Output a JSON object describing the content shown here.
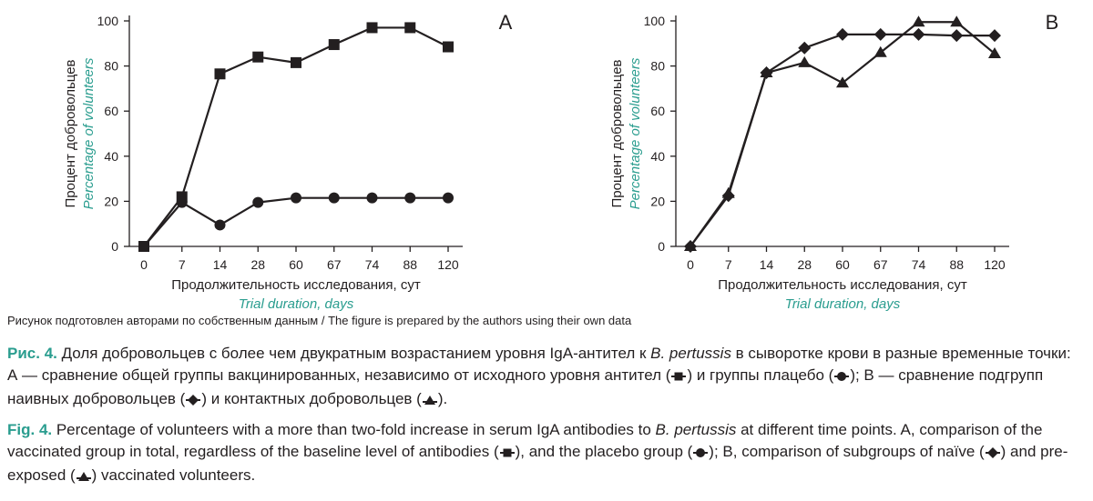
{
  "chart_data": [
    {
      "type": "line",
      "panel_label": "A",
      "categories": [
        "0",
        "7",
        "14",
        "28",
        "60",
        "67",
        "74",
        "88",
        "120"
      ],
      "ylabel": "Процент добровольцев",
      "ylabel_en": "Percentage of volunteers",
      "xlabel": "Продолжительность исследования, сут",
      "xlabel_en": "Trial duration, days",
      "yticks": [
        "0",
        "20",
        "40",
        "60",
        "80",
        "100"
      ],
      "ylim": [
        0,
        100
      ],
      "grid": false,
      "series": [
        {
          "marker": "square",
          "values": [
            0,
            22,
            76.5,
            84,
            81.5,
            89.5,
            97,
            97,
            88.5
          ]
        },
        {
          "marker": "circle",
          "values": [
            0,
            19.5,
            9.5,
            19.5,
            21.5,
            21.5,
            21.5,
            21.5,
            21.5
          ]
        }
      ]
    },
    {
      "type": "line",
      "panel_label": "B",
      "categories": [
        "0",
        "7",
        "14",
        "28",
        "60",
        "67",
        "74",
        "88",
        "120"
      ],
      "ylabel": "Процент добровольцев",
      "ylabel_en": "Percentage of volunteers",
      "xlabel": "Продолжительность исследования, сут",
      "xlabel_en": "Trial duration, days",
      "yticks": [
        "0",
        "20",
        "40",
        "60",
        "80",
        "100"
      ],
      "ylim": [
        0,
        100
      ],
      "grid": false,
      "series": [
        {
          "marker": "diamond",
          "values": [
            0,
            22.5,
            77,
            88,
            94,
            94,
            94,
            93.5,
            93.5
          ]
        },
        {
          "marker": "triangle",
          "values": [
            0,
            23.5,
            77,
            81.5,
            72.5,
            86,
            99.5,
            99.5,
            85.5
          ]
        }
      ]
    }
  ],
  "source_note": "Рисунок подготовлен авторами по собственным данным / The figure is prepared by the authors using their own data",
  "caption_ru": {
    "label": "Рис. 4.",
    "t1": " Доля добровольцев с более чем двукратным возрастанием уровня IgA-антител к ",
    "italic": "B. pertussis",
    "t2": " в сыворотке крови в разные временные точки: А — сравнение общей группы вакцинированных, независимо от исходного уровня антител (",
    "t3": ") и группы плацебо (",
    "t4": "); В — сравнение подгрупп наивных добровольцев (",
    "t5": ") и контактных добровольцев (",
    "t6": ")."
  },
  "caption_en": {
    "label": "Fig. 4.",
    "t1": " Percentage of volunteers with a more than two-fold increase in serum IgA antibodies to ",
    "italic": "B. pertussis",
    "t2": " at different time points. A, comparison of the vaccinated group in total, regardless of the baseline level of antibodies (",
    "t3": "), and the placebo group (",
    "t4": "); B, comparison of subgroups of naïve (",
    "t5": ") and pre-exposed (",
    "t6": ") vaccinated volunteers."
  }
}
